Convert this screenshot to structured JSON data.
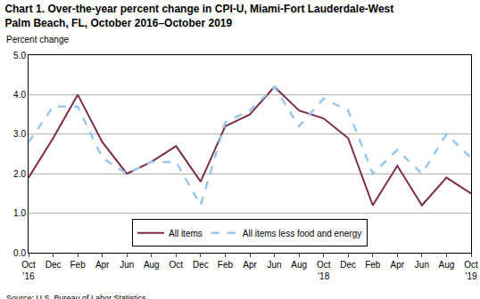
{
  "chart_data": {
    "type": "line",
    "title": "Chart 1. Over-the-year percent change in CPI-U, Miami-Fort Lauderdale-West\nPalm Beach, FL, October 2016–October 2019",
    "y_label": "Percent change",
    "source": "Source: U.S. Bureau of Labor Statistics.",
    "categories": [
      "Oct\n'16",
      "Dec",
      "Feb",
      "Apr",
      "Jun",
      "Aug",
      "Oct",
      "Dec",
      "Feb",
      "Apr",
      "Jun",
      "Aug",
      "Oct\n'18",
      "Dec",
      "Feb",
      "Apr",
      "Jun",
      "Aug",
      "Oct\n'19"
    ],
    "series": [
      {
        "name": "All items",
        "color": "#7b2c4c",
        "line_style": "solid",
        "values": [
          1.9,
          2.9,
          4.0,
          2.8,
          2.0,
          2.3,
          2.7,
          1.8,
          3.2,
          3.5,
          4.2,
          3.6,
          3.4,
          2.9,
          1.2,
          2.2,
          1.2,
          1.9,
          1.5
        ]
      },
      {
        "name": "All items less food and energy",
        "color": "#9ac8eb",
        "line_style": "dash",
        "values": [
          2.8,
          3.7,
          3.7,
          2.4,
          2.0,
          2.3,
          2.3,
          1.2,
          3.3,
          3.6,
          4.2,
          3.2,
          3.9,
          3.6,
          2.0,
          2.6,
          2.0,
          3.0,
          2.4
        ]
      }
    ],
    "ylim": [
      0,
      5
    ],
    "yticks": [
      {
        "value": 0,
        "label": "0.0"
      },
      {
        "value": 1,
        "label": "1.0"
      },
      {
        "value": 2,
        "label": "2.0"
      },
      {
        "value": 3,
        "label": "3.0"
      },
      {
        "value": 4,
        "label": "4.0"
      },
      {
        "value": 5,
        "label": "5.0"
      }
    ],
    "grid": true,
    "legend": "bottom"
  }
}
